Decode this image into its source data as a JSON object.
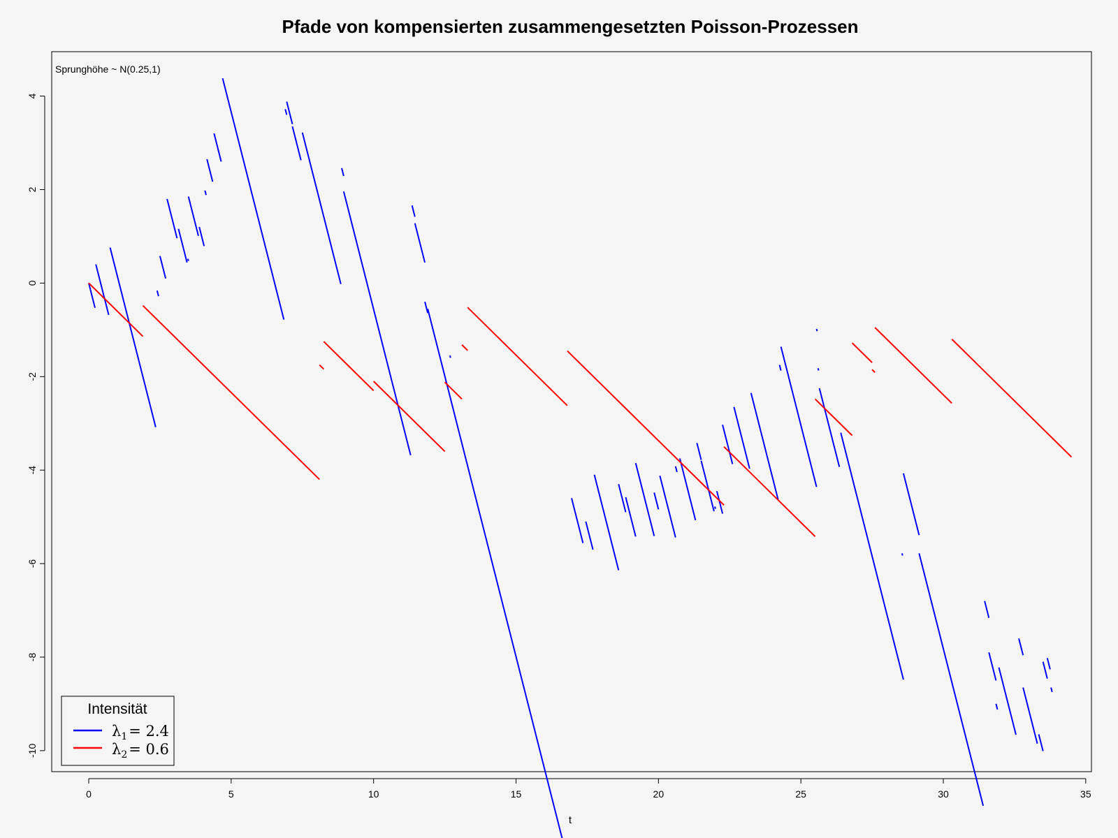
{
  "chart_data": {
    "type": "line",
    "title": "Pfade von kompensierten zusammengesetzten Poisson-Prozessen",
    "xlabel": "t",
    "ylabel": "",
    "annotation": "Sprunghöhe ~ N(0.25,1)",
    "xlim": [
      -1.3,
      35.2
    ],
    "ylim": [
      -10.45,
      4.95
    ],
    "x_ticks": [
      0,
      5,
      10,
      15,
      20,
      25,
      30,
      35
    ],
    "y_ticks": [
      -10,
      -8,
      -6,
      -4,
      -2,
      0,
      2,
      4
    ],
    "grid": false,
    "legend": {
      "title": "Intensität",
      "position": "bottom-left",
      "entries": [
        {
          "symbol": "λ",
          "sub": "1",
          "value": "= 2.4",
          "color": "#0000ff"
        },
        {
          "symbol": "λ",
          "sub": "2",
          "value": "= 0.6",
          "color": "#ff0000"
        }
      ]
    },
    "series": [
      {
        "color": "#0000ff",
        "slope": -2.4,
        "segments": [
          [
            0.0,
            0.0,
            0.22
          ],
          [
            0.25,
            0.4,
            0.7
          ],
          [
            0.75,
            0.76,
            2.35
          ],
          [
            2.4,
            -0.16,
            2.45
          ],
          [
            2.5,
            0.58,
            2.7
          ],
          [
            2.75,
            1.8,
            3.1
          ],
          [
            3.15,
            1.16,
            3.45
          ],
          [
            3.48,
            0.52,
            3.5
          ],
          [
            3.5,
            1.85,
            3.85
          ],
          [
            3.88,
            1.2,
            4.05
          ],
          [
            4.08,
            1.98,
            4.12
          ],
          [
            4.15,
            2.65,
            4.35
          ],
          [
            4.4,
            3.2,
            4.65
          ],
          [
            4.7,
            4.38,
            6.85
          ],
          [
            6.9,
            3.72,
            6.95
          ],
          [
            6.95,
            3.88,
            7.15
          ],
          [
            7.15,
            3.35,
            7.45
          ],
          [
            7.5,
            3.22,
            8.85
          ],
          [
            8.88,
            2.46,
            8.95
          ],
          [
            8.95,
            1.96,
            11.3
          ],
          [
            11.35,
            1.66,
            11.45
          ],
          [
            11.45,
            1.28,
            11.8
          ],
          [
            11.8,
            -0.4,
            11.9
          ],
          [
            11.9,
            -0.55,
            16.9
          ],
          [
            12.68,
            -1.55,
            12.7
          ],
          [
            16.95,
            -4.6,
            17.35
          ],
          [
            17.45,
            -5.1,
            17.7
          ],
          [
            17.75,
            -4.1,
            18.6
          ],
          [
            18.6,
            -4.3,
            18.85
          ],
          [
            18.85,
            -4.58,
            19.2
          ],
          [
            19.2,
            -3.85,
            19.85
          ],
          [
            19.85,
            -4.48,
            20.0
          ],
          [
            20.05,
            -4.12,
            20.6
          ],
          [
            20.6,
            -3.92,
            20.65
          ],
          [
            20.75,
            -3.75,
            21.3
          ],
          [
            21.35,
            -3.42,
            21.5
          ],
          [
            21.5,
            -3.8,
            21.95
          ],
          [
            21.98,
            -4.78,
            22.0
          ],
          [
            22.05,
            -4.45,
            22.25
          ],
          [
            22.25,
            -3.03,
            22.6
          ],
          [
            22.65,
            -2.65,
            23.2
          ],
          [
            23.25,
            -2.35,
            24.2
          ],
          [
            24.25,
            -1.75,
            24.3
          ],
          [
            24.3,
            -1.36,
            25.55
          ],
          [
            25.55,
            -0.98,
            25.57
          ],
          [
            25.6,
            -1.82,
            25.62
          ],
          [
            25.65,
            -2.25,
            26.35
          ],
          [
            26.4,
            -3.2,
            28.6
          ],
          [
            28.55,
            -5.78,
            28.57
          ],
          [
            28.6,
            -4.07,
            29.15
          ],
          [
            29.15,
            -5.78,
            31.4
          ],
          [
            31.45,
            -6.8,
            31.6
          ],
          [
            31.6,
            -7.9,
            31.85
          ],
          [
            31.85,
            -9.0,
            31.9
          ],
          [
            31.95,
            -8.22,
            32.55
          ],
          [
            32.65,
            -7.6,
            32.8
          ],
          [
            32.8,
            -8.65,
            33.3
          ],
          [
            33.35,
            -9.65,
            33.5
          ],
          [
            33.5,
            -8.1,
            33.65
          ],
          [
            33.65,
            -8.02,
            33.75
          ],
          [
            33.78,
            -8.65,
            33.82
          ]
        ]
      },
      {
        "color": "#ff0000",
        "slope": -0.6,
        "segments": [
          [
            0.0,
            0.0,
            1.9
          ],
          [
            1.9,
            -0.48,
            8.1
          ],
          [
            8.1,
            -1.75,
            8.25
          ],
          [
            8.25,
            -1.25,
            10.0
          ],
          [
            10.0,
            -2.1,
            12.5
          ],
          [
            12.5,
            -2.12,
            13.1
          ],
          [
            13.1,
            -1.32,
            13.3
          ],
          [
            13.3,
            -0.52,
            16.8
          ],
          [
            16.8,
            -1.45,
            22.3
          ],
          [
            22.3,
            -3.5,
            25.5
          ],
          [
            25.5,
            -2.48,
            26.8
          ],
          [
            26.8,
            -1.28,
            27.5
          ],
          [
            27.5,
            -1.85,
            27.6
          ],
          [
            27.6,
            -0.95,
            30.3
          ],
          [
            30.3,
            -1.2,
            34.5
          ]
        ]
      }
    ]
  }
}
